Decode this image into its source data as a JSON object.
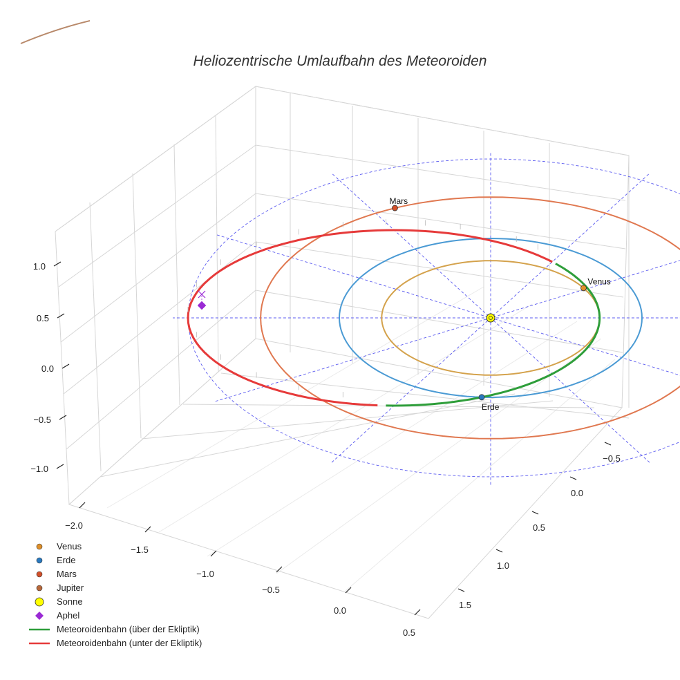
{
  "chart_data": {
    "type": "line",
    "title": "Heliozentrische Umlaufbahn des Meteoroiden",
    "x_ticks": [
      -2.0,
      -1.5,
      -1.0,
      -0.5,
      0.0,
      0.5
    ],
    "y_ticks": [
      -0.5,
      0.0,
      0.5,
      1.0,
      1.5
    ],
    "z_ticks": [
      -1.0,
      -0.5,
      0.0,
      0.5,
      1.0
    ],
    "x_tick_labels": [
      "−2.0",
      "−1.5",
      "−1.0",
      "−0.5",
      "0.0",
      "0.5"
    ],
    "y_tick_labels": [
      "−0.5",
      "0.0",
      "0.5",
      "1.0",
      "1.5"
    ],
    "z_tick_labels": [
      "−1.0",
      "−0.5",
      "0.0",
      "0.5",
      "1.0"
    ],
    "grid": true,
    "legend_position": "bottom-left",
    "orbits": [
      {
        "name": "Venus",
        "radius_au": 0.72,
        "color": "#d4a24c"
      },
      {
        "name": "Erde",
        "radius_au": 1.0,
        "color": "#4a9ad4"
      },
      {
        "name": "Mars",
        "radius_au": 1.52,
        "color": "#e07850"
      },
      {
        "name": "Jupiter",
        "radius_au": 5.2,
        "color": "#b8896a"
      }
    ],
    "planet_labels": [
      "Venus",
      "Erde",
      "Mars"
    ],
    "meteoroid_orbit": {
      "perihelion_au": 0.72,
      "aphelion_au": 2.0,
      "above_ecliptic_color": "#2e9e3a",
      "below_ecliptic_color": "#e63a3a"
    },
    "legend": [
      {
        "label": "Venus",
        "marker": "dot",
        "color": "#e0902a"
      },
      {
        "label": "Erde",
        "marker": "dot",
        "color": "#2a7ac0"
      },
      {
        "label": "Mars",
        "marker": "dot",
        "color": "#d2502a"
      },
      {
        "label": "Jupiter",
        "marker": "dot",
        "color": "#b8683a"
      },
      {
        "label": "Sonne",
        "marker": "sun",
        "color": "#ffff00"
      },
      {
        "label": "Aphel",
        "marker": "diamond",
        "color": "#9a2ad4"
      },
      {
        "label": "Meteoroidenbahn (über der Ekliptik)",
        "marker": "line",
        "color": "#2e9e3a"
      },
      {
        "label": "Meteoroidenbahn (unter der Ekliptik)",
        "marker": "line",
        "color": "#e63a3a"
      }
    ]
  }
}
